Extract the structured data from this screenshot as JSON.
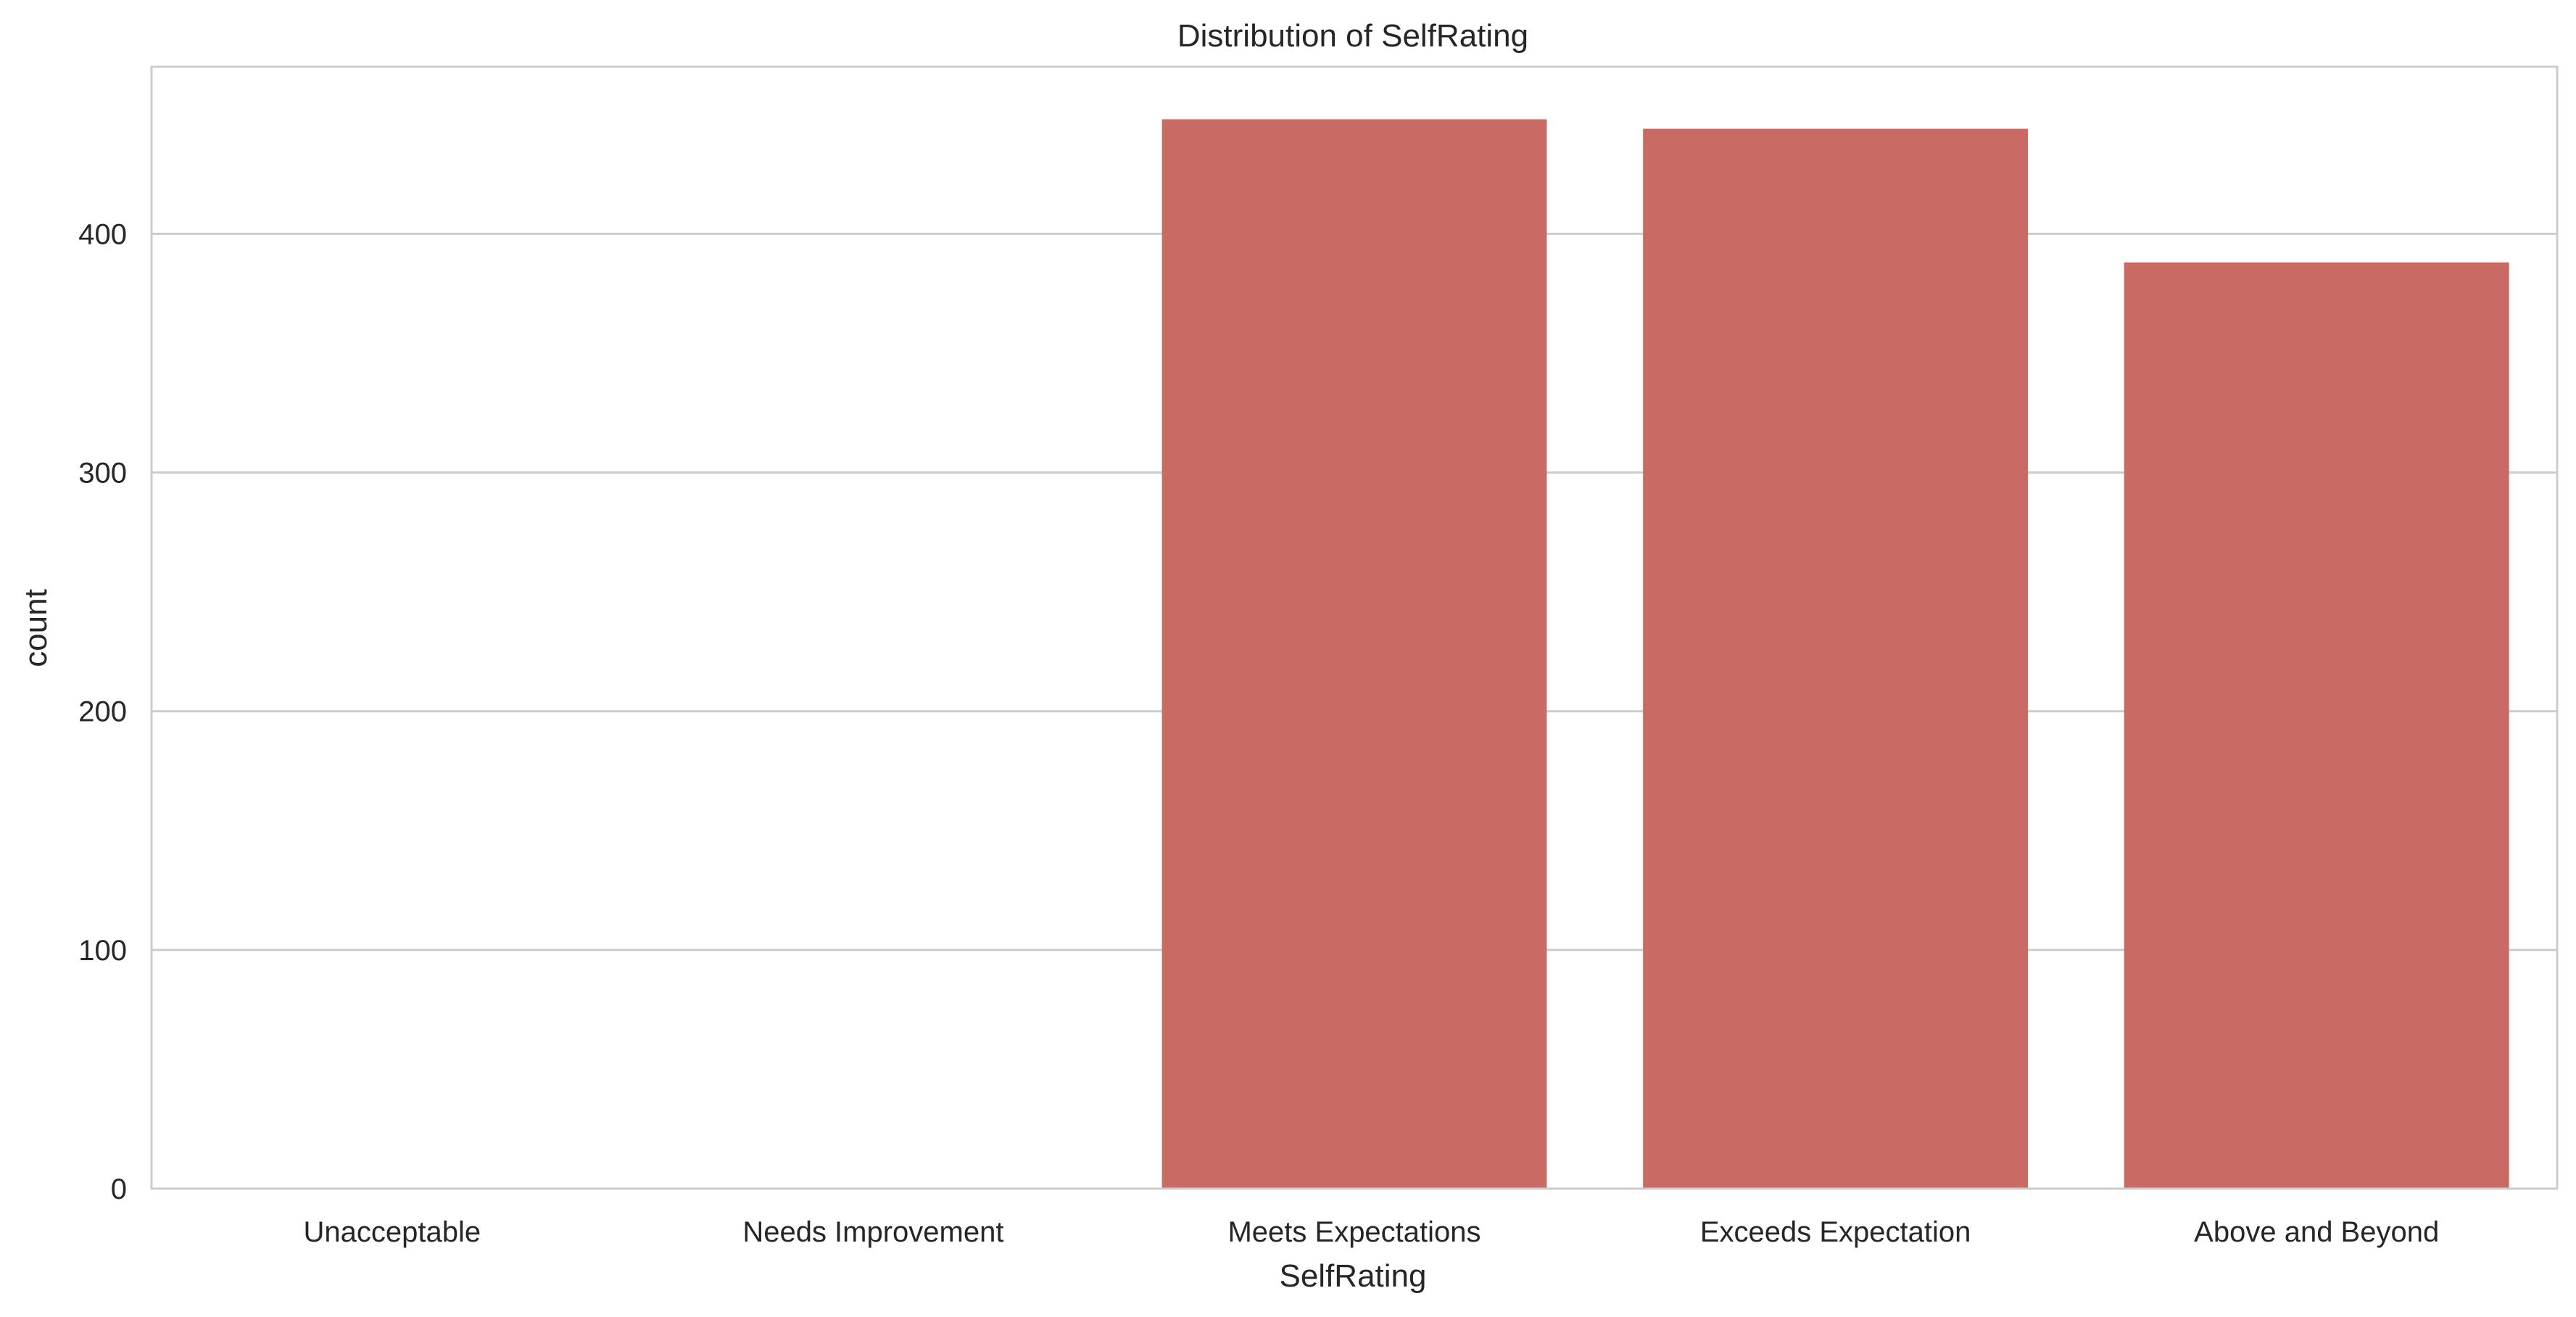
{
  "chart_data": {
    "type": "bar",
    "title": "Distribution of SelfRating",
    "xlabel": "SelfRating",
    "ylabel": "count",
    "categories": [
      "Unacceptable",
      "Needs Improvement",
      "Meets Expectations",
      "Exceeds Expectation",
      "Above and Beyond"
    ],
    "values": [
      0,
      0,
      448,
      444,
      388
    ],
    "ylim": [
      0,
      470
    ],
    "yticks": [
      0,
      100,
      200,
      300,
      400
    ],
    "grid": true,
    "bar_color": "#c96b64",
    "grid_color": "#cccccc",
    "frame_color": "#cccccc"
  }
}
